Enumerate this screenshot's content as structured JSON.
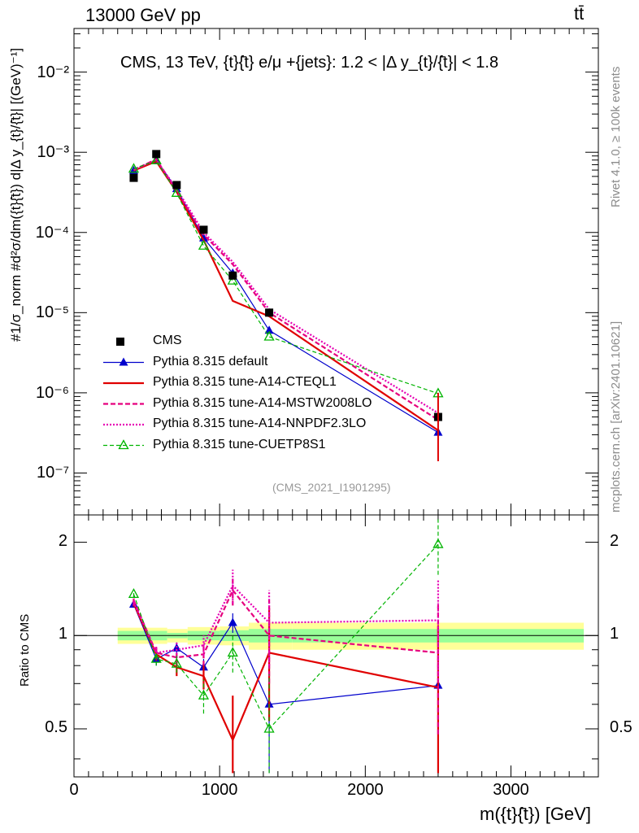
{
  "header": {
    "left": "13000 GeV pp",
    "right": "tt̄"
  },
  "plot_title": "CMS, 13 TeV, {t}{̄t} e/μ +{jets}: 1.2 < |Δ y_{t}/{̄t}| < 1.8",
  "analysis_tag": "(CMS_2021_I1901295)",
  "side_labels": {
    "rivet": "Rivet 4.1.0, ≥ 100k events",
    "mcplots": "mcplots.cern.ch [arXiv:2401.10621]"
  },
  "y_label_main": "#1/σ_norm #d²σ/dm({t}{̄t}) d|Δ y_{t}/{̄t}| [(GeV)⁻¹]",
  "y_label_ratio": "Ratio to CMS",
  "x_label": "m({t}{̄t}) [GeV]",
  "colors": {
    "cms": "#000000",
    "default": "#0000cc",
    "cteq": "#e00000",
    "mstw": "#e6007e",
    "nnpdf": "#e600b4",
    "cuetp": "#00b400",
    "band_inner": "#99ff99",
    "band_outer": "#ffff99"
  },
  "chart_data": {
    "type": "line",
    "xlim": [
      0,
      3600
    ],
    "main_ylim": [
      3e-08,
      0.035
    ],
    "ratio_ylim": [
      0.35,
      2.45
    ],
    "x_ticks": [
      "0",
      "1000",
      "2000",
      "3000"
    ],
    "x_tick_values": [
      0,
      1000,
      2000,
      3000
    ],
    "main_y_ticks": [
      "10⁻⁷",
      "10⁻⁶",
      "10⁻⁵",
      "10⁻⁴",
      "10⁻³",
      "10⁻²"
    ],
    "main_y_tick_exps": [
      -7,
      -6,
      -5,
      -4,
      -3,
      -2
    ],
    "ratio_y_ticks": [
      "0.5",
      "1",
      "2"
    ],
    "ratio_y_tick_values": [
      0.5,
      1,
      2
    ],
    "x": [
      410,
      565,
      705,
      890,
      1090,
      1340,
      2500
    ],
    "cms": {
      "name": "CMS",
      "values": [
        0.00048,
        0.00095,
        0.00039,
        0.000108,
        2.9e-05,
        1e-05,
        5e-07
      ],
      "bins": [
        [
          300,
          500
        ],
        [
          500,
          640
        ],
        [
          640,
          780
        ],
        [
          780,
          1000
        ],
        [
          1000,
          1200
        ],
        [
          1200,
          1500
        ],
        [
          1500,
          3500
        ]
      ],
      "band_inner": [
        0.035,
        0.035,
        0.02,
        0.035,
        0.04,
        0.05,
        0.05
      ],
      "band_outer": [
        0.06,
        0.06,
        0.05,
        0.065,
        0.07,
        0.1,
        0.1
      ]
    },
    "series": [
      {
        "key": "default",
        "name": "Pythia 8.315 default",
        "values": [
          0.00059,
          0.00079,
          0.00035,
          8.5e-05,
          3.1e-05,
          6e-06,
          3.2e-07
        ],
        "ratio": [
          1.26,
          0.84,
          0.91,
          0.79,
          1.1,
          0.6,
          0.69
        ],
        "ratio_err": [
          0.03,
          0.04,
          0.04,
          0.05,
          0.08,
          0.25,
          0.3
        ]
      },
      {
        "key": "cteq",
        "name": "Pythia 8.315 tune-A14-CTEQL1",
        "values": [
          0.00059,
          0.00077,
          0.00032,
          8e-05,
          1.4e-05,
          9e-06,
          3.4e-07
        ],
        "ratio": [
          1.27,
          0.87,
          0.79,
          0.74,
          0.46,
          0.88,
          0.68
        ],
        "ratio_err": [
          0.03,
          0.04,
          0.05,
          0.07,
          0.18,
          0.35,
          0.4
        ]
      },
      {
        "key": "mstw",
        "name": "Pythia 8.315 tune-A14-MSTW2008LO",
        "values": [
          0.0006,
          0.00082,
          0.00033,
          9.4e-05,
          4e-05,
          1e-05,
          4.6e-07
        ],
        "ratio": [
          1.3,
          0.88,
          0.85,
          0.87,
          1.4,
          1.0,
          0.88
        ],
        "ratio_err": [
          0.03,
          0.04,
          0.05,
          0.07,
          0.15,
          0.3,
          0.4
        ]
      },
      {
        "key": "nnpdf",
        "name": "Pythia 8.315 tune-A14-NNPDF2.3LO",
        "values": [
          0.00061,
          0.0008,
          0.00035,
          0.0001,
          4.3e-05,
          1.1e-05,
          5.6e-07
        ],
        "ratio": [
          1.28,
          0.88,
          0.9,
          0.93,
          1.45,
          1.1,
          1.12
        ],
        "ratio_err": [
          0.03,
          0.04,
          0.05,
          0.07,
          0.18,
          0.3,
          0.4
        ]
      },
      {
        "key": "cuetp",
        "name": "Pythia 8.315 tune-CUETP8S1",
        "values": [
          0.00062,
          0.00079,
          0.00031,
          6.8e-05,
          2.5e-05,
          5e-06,
          9.8e-07
        ],
        "ratio": [
          1.36,
          0.84,
          0.81,
          0.64,
          0.88,
          0.5,
          1.97
        ],
        "ratio_err": [
          0.03,
          0.04,
          0.05,
          0.08,
          0.12,
          0.25,
          0.4
        ]
      }
    ]
  },
  "legend": {
    "cms_label": "CMS"
  }
}
